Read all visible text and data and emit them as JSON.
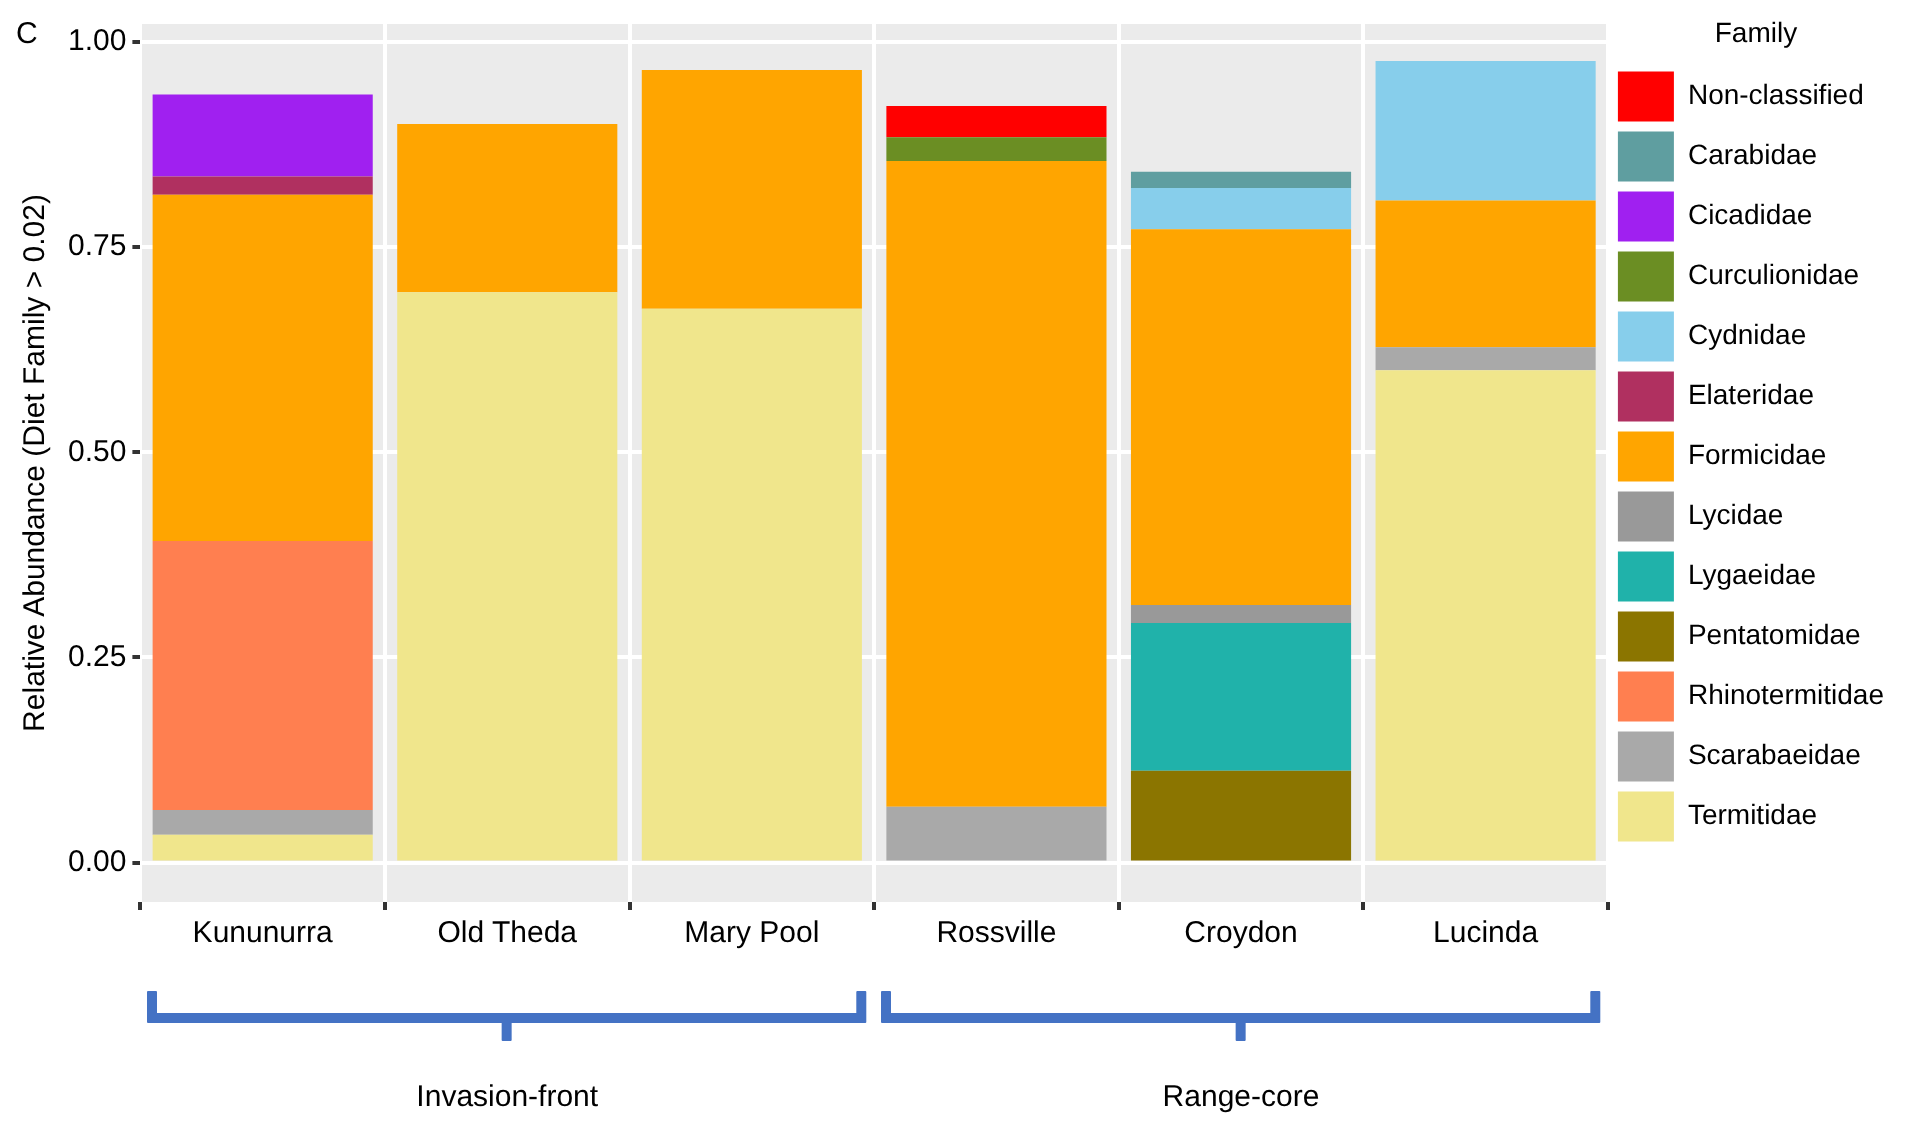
{
  "chart_data": {
    "type": "bar",
    "title": "C",
    "ylabel": "Relative Abundance (Diet Family > 0.02)",
    "legend_title": "Family",
    "categories": [
      "Kununurra",
      "Old Theda",
      "Mary Pool",
      "Rossville",
      "Croydon",
      "Lucinda"
    ],
    "stacked": true,
    "ylim": [
      -0.048,
      1.022
    ],
    "yticks": [
      {
        "value": 0,
        "label": "0.00"
      },
      {
        "value": 0.25,
        "label": "0.25"
      },
      {
        "value": 0.5,
        "label": "0.50"
      },
      {
        "value": 0.75,
        "label": "0.75"
      },
      {
        "value": 1,
        "label": "1.00"
      }
    ],
    "grid": true,
    "legend": "right",
    "annotations": [
      "Invasion-front",
      "Range-core"
    ],
    "series": [
      {
        "name": "Termitidae",
        "color": "#f0e68c",
        "values": [
          0.034,
          0.695,
          0.675,
          null,
          null,
          0.6
        ]
      },
      {
        "name": "Scarabaeidae",
        "color": "#a9a9a9",
        "values": [
          0.03,
          null,
          null,
          0.068,
          null,
          0.028
        ]
      },
      {
        "name": "Rhinotermitidae",
        "color": "#ff7f50",
        "values": [
          0.328,
          null,
          null,
          null,
          null,
          null
        ]
      },
      {
        "name": "Pentatomidae",
        "color": "#8b7500",
        "values": [
          null,
          null,
          null,
          null,
          0.112,
          null
        ]
      },
      {
        "name": "Lygaeidae",
        "color": "#20b2aa",
        "values": [
          null,
          null,
          null,
          null,
          0.18,
          null
        ]
      },
      {
        "name": "Lycidae",
        "color": "#999999",
        "values": [
          null,
          null,
          null,
          null,
          0.022,
          null
        ]
      },
      {
        "name": "Formicidae",
        "color": "#ffa500",
        "values": [
          0.422,
          0.205,
          0.291,
          0.787,
          0.458,
          0.179
        ]
      },
      {
        "name": "Elateridae",
        "color": "#b03060",
        "values": [
          0.022,
          null,
          null,
          null,
          null,
          null
        ]
      },
      {
        "name": "Cydnidae",
        "color": "#87ceeb",
        "values": [
          null,
          null,
          null,
          null,
          0.05,
          0.17
        ]
      },
      {
        "name": "Curculionidae",
        "color": "#6b8e23",
        "values": [
          null,
          null,
          null,
          0.029,
          null,
          null
        ]
      },
      {
        "name": "Cicadidae",
        "color": "#a020f0",
        "values": [
          0.1,
          null,
          null,
          null,
          null,
          null
        ]
      },
      {
        "name": "Carabidae",
        "color": "#5f9ea0",
        "values": [
          null,
          null,
          null,
          null,
          0.02,
          null
        ]
      },
      {
        "name": "Non-classified",
        "color": "#ff0000",
        "values": [
          null,
          null,
          null,
          0.038,
          null,
          null
        ]
      }
    ]
  }
}
